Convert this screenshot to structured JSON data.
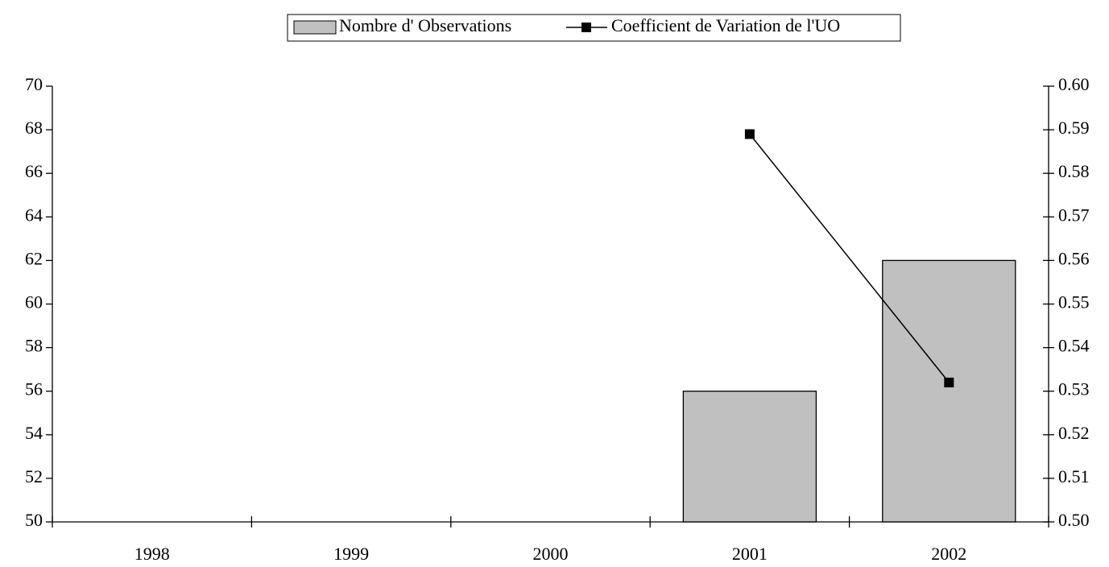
{
  "chart_data": {
    "type": "bar",
    "categories": [
      "1998",
      "1999",
      "2000",
      "2001",
      "2002"
    ],
    "series": [
      {
        "name": "Nombre d' Observations",
        "type": "bar",
        "color": "#c0c0c0",
        "values": [
          null,
          null,
          null,
          56,
          62
        ]
      },
      {
        "name": "Coefficient de Variation de l'UO",
        "type": "line",
        "axis": "y2",
        "color": "#000000",
        "values": [
          null,
          null,
          null,
          0.589,
          0.532
        ]
      }
    ],
    "ylim": [
      50,
      70
    ],
    "yticks": [
      50,
      52,
      54,
      56,
      58,
      60,
      62,
      64,
      66,
      68,
      70
    ],
    "y2lim": [
      0.5,
      0.6
    ],
    "y2ticks": [
      {
        "value": 0.5,
        "label": "0.50"
      },
      0.51,
      0.52,
      0.53,
      0.54,
      0.55,
      0.56,
      0.57,
      0.58,
      0.59,
      {
        "value": 0.6,
        "label": "0.60"
      }
    ],
    "legend": "top"
  }
}
